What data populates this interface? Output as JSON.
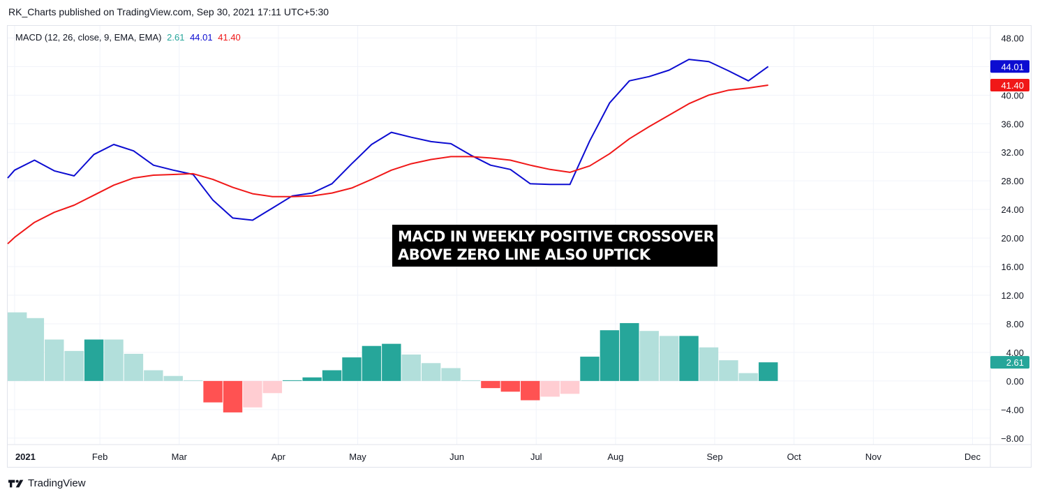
{
  "header": {
    "publish_line": "RK_Charts published on TradingView.com, Sep 30, 2021 17:11 UTC+5:30"
  },
  "legend": {
    "name": "MACD (12, 26, close, 9, EMA, EMA)",
    "hist": "2.61",
    "macd": "44.01",
    "signal": "41.40"
  },
  "annotation": {
    "line1": "MACD IN WEEKLY POSITIVE CROSSOVER",
    "line2": "ABOVE ZERO LINE ALSO UPTICK"
  },
  "footer": {
    "brand": "TradingView"
  },
  "colors": {
    "macd": "#0c0cd1",
    "signal": "#f01818",
    "hist_up_strong": "#26a69a",
    "hist_up_weak": "#b2dfdb",
    "hist_down_strong": "#ff5252",
    "hist_down_weak": "#ffcdd2",
    "grid": "#f0f3fa",
    "axis_text": "#131722"
  },
  "chart_data": {
    "type": "line",
    "title": "MACD (12, 26, close, 9, EMA, EMA)",
    "x_unit": "week",
    "x_axis_ticks": [
      {
        "label": "2021",
        "week": 0
      },
      {
        "label": "Feb",
        "week": 4.3
      },
      {
        "label": "Mar",
        "week": 8.3
      },
      {
        "label": "Apr",
        "week": 13.3
      },
      {
        "label": "May",
        "week": 17.3
      },
      {
        "label": "Jun",
        "week": 22.3
      },
      {
        "label": "Jul",
        "week": 26.3
      },
      {
        "label": "Aug",
        "week": 30.3
      },
      {
        "label": "Sep",
        "week": 35.3
      },
      {
        "label": "Oct",
        "week": 39.3
      },
      {
        "label": "Nov",
        "week": 43.3
      },
      {
        "label": "Dec",
        "week": 48.3
      }
    ],
    "x_range": [
      -0.35,
      49.2
    ],
    "y_ticks": [
      "48.00",
      "44.00",
      "40.00",
      "36.00",
      "32.00",
      "28.00",
      "24.00",
      "20.00",
      "16.00",
      "12.00",
      "8.00",
      "4.00",
      "0.00",
      "−4.00",
      "−8.00"
    ],
    "y_range": [
      -8.9,
      49.7
    ],
    "series": [
      {
        "name": "MACD",
        "color": "#0c0cd1",
        "x": [
          -0.35,
          0,
          1,
          2,
          3,
          4,
          5,
          6,
          7,
          8,
          9,
          10,
          11,
          12,
          13,
          14,
          15,
          16,
          17,
          18,
          19,
          20,
          21,
          22,
          23,
          24,
          25,
          26,
          27,
          28,
          29,
          30,
          31,
          32,
          33,
          34,
          35,
          36,
          37,
          38
        ],
        "values": [
          28.4,
          29.5,
          30.9,
          29.4,
          28.7,
          31.7,
          33.1,
          32.2,
          30.2,
          29.5,
          28.9,
          25.3,
          22.8,
          22.5,
          24.2,
          25.9,
          26.3,
          27.6,
          30.4,
          33.1,
          34.8,
          34.1,
          33.5,
          33.2,
          31.6,
          30.2,
          29.6,
          27.6,
          27.5,
          27.5,
          33.6,
          38.9,
          42.0,
          42.6,
          43.5,
          45.0,
          44.7,
          43.4,
          42.0,
          44.01
        ]
      },
      {
        "name": "Signal",
        "color": "#f01818",
        "x": [
          -0.35,
          0,
          1,
          2,
          3,
          4,
          5,
          6,
          7,
          8,
          9,
          10,
          11,
          12,
          13,
          14,
          15,
          16,
          17,
          18,
          19,
          20,
          21,
          22,
          23,
          24,
          25,
          26,
          27,
          28,
          29,
          30,
          31,
          32,
          33,
          34,
          35,
          36,
          37,
          38
        ],
        "values": [
          19.2,
          20.1,
          22.2,
          23.6,
          24.6,
          26.0,
          27.4,
          28.4,
          28.8,
          28.9,
          29.0,
          28.2,
          27.1,
          26.2,
          25.8,
          25.8,
          25.9,
          26.3,
          27.0,
          28.2,
          29.5,
          30.4,
          31.0,
          31.4,
          31.4,
          31.2,
          30.9,
          30.2,
          29.6,
          29.2,
          30.1,
          31.8,
          33.9,
          35.6,
          37.2,
          38.8,
          40.0,
          40.7,
          41.0,
          41.4
        ]
      },
      {
        "name": "Histogram",
        "kind": "bar",
        "x": [
          0,
          1,
          2,
          3,
          4,
          5,
          6,
          7,
          8,
          9,
          10,
          11,
          12,
          13,
          14,
          15,
          16,
          17,
          18,
          19,
          20,
          21,
          22,
          23,
          24,
          25,
          26,
          27,
          28,
          29,
          30,
          31,
          32,
          33,
          34,
          35,
          36,
          37,
          38
        ],
        "values": [
          9.6,
          8.8,
          5.8,
          4.2,
          5.8,
          5.8,
          3.8,
          1.5,
          0.7,
          0.1,
          -3.0,
          -4.4,
          -3.7,
          -1.7,
          0.1,
          0.5,
          1.5,
          3.3,
          4.9,
          5.2,
          3.7,
          2.5,
          1.8,
          0.1,
          -1.0,
          -1.5,
          -2.7,
          -2.2,
          -1.8,
          3.4,
          7.1,
          8.1,
          7.0,
          6.3,
          6.3,
          4.7,
          2.9,
          1.1,
          2.61
        ],
        "states": [
          "up_weak",
          "up_weak",
          "up_weak",
          "up_weak",
          "up_strong",
          "up_weak",
          "up_weak",
          "up_weak",
          "up_weak",
          "up_weak",
          "down_strong",
          "down_strong",
          "down_weak",
          "down_weak",
          "up_strong",
          "up_strong",
          "up_strong",
          "up_strong",
          "up_strong",
          "up_strong",
          "up_weak",
          "up_weak",
          "up_weak",
          "up_weak",
          "down_strong",
          "down_strong",
          "down_strong",
          "down_weak",
          "down_weak",
          "up_strong",
          "up_strong",
          "up_strong",
          "up_weak",
          "up_weak",
          "up_strong",
          "up_weak",
          "up_weak",
          "up_weak",
          "up_strong"
        ]
      }
    ],
    "last_value_labels": [
      {
        "text": "44.01",
        "series": "MACD"
      },
      {
        "text": "41.40",
        "series": "Signal"
      },
      {
        "text": "2.61",
        "series": "Histogram"
      }
    ],
    "grid": true
  }
}
